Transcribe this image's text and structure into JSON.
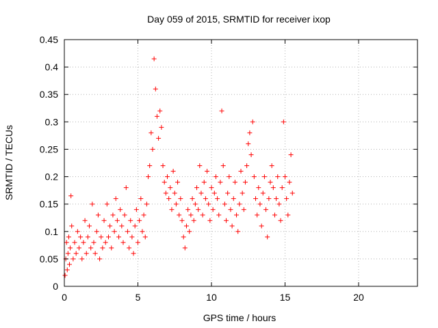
{
  "chart_data": {
    "type": "scatter",
    "title": "Day 059 of 2015, SRMTID for receiver ixop",
    "xlabel": "GPS time / hours",
    "ylabel": "SRMTID / TECUs",
    "xlim": [
      0,
      24
    ],
    "ylim": [
      0,
      0.45
    ],
    "x_ticks": [
      0,
      5,
      10,
      15,
      20
    ],
    "x_tick_labels": [
      "0",
      "5",
      "10",
      "15",
      "20"
    ],
    "y_ticks": [
      0,
      0.05,
      0.1,
      0.15,
      0.2,
      0.25,
      0.3,
      0.35,
      0.4,
      0.45
    ],
    "y_tick_labels": [
      "0",
      "0.05",
      "0.1",
      "0.15",
      "0.2",
      "0.25",
      "0.3",
      "0.35",
      "0.4",
      "0.45"
    ],
    "grid": true,
    "marker": "+",
    "marker_color": "#ff0000",
    "data_extent_hours": [
      0,
      15.5
    ],
    "series": [
      {
        "name": "SRMTID",
        "points": [
          [
            0.05,
            0.02
          ],
          [
            0.1,
            0.05
          ],
          [
            0.15,
            0.08
          ],
          [
            0.2,
            0.03
          ],
          [
            0.25,
            0.06
          ],
          [
            0.3,
            0.09
          ],
          [
            0.35,
            0.04
          ],
          [
            0.4,
            0.07
          ],
          [
            0.45,
            0.165
          ],
          [
            0.5,
            0.11
          ],
          [
            0.6,
            0.05
          ],
          [
            0.7,
            0.08
          ],
          [
            0.8,
            0.06
          ],
          [
            0.9,
            0.1
          ],
          [
            1.0,
            0.07
          ],
          [
            1.1,
            0.09
          ],
          [
            1.2,
            0.05
          ],
          [
            1.3,
            0.08
          ],
          [
            1.4,
            0.12
          ],
          [
            1.5,
            0.06
          ],
          [
            1.6,
            0.09
          ],
          [
            1.7,
            0.11
          ],
          [
            1.8,
            0.07
          ],
          [
            1.9,
            0.15
          ],
          [
            2.0,
            0.08
          ],
          [
            2.1,
            0.06
          ],
          [
            2.2,
            0.1
          ],
          [
            2.3,
            0.13
          ],
          [
            2.4,
            0.05
          ],
          [
            2.5,
            0.09
          ],
          [
            2.6,
            0.07
          ],
          [
            2.7,
            0.12
          ],
          [
            2.8,
            0.08
          ],
          [
            2.9,
            0.15
          ],
          [
            3.0,
            0.09
          ],
          [
            3.1,
            0.11
          ],
          [
            3.2,
            0.07
          ],
          [
            3.3,
            0.13
          ],
          [
            3.4,
            0.1
          ],
          [
            3.5,
            0.16
          ],
          [
            3.6,
            0.12
          ],
          [
            3.7,
            0.09
          ],
          [
            3.8,
            0.14
          ],
          [
            3.9,
            0.11
          ],
          [
            4.0,
            0.08
          ],
          [
            4.1,
            0.13
          ],
          [
            4.2,
            0.18
          ],
          [
            4.3,
            0.1
          ],
          [
            4.4,
            0.07
          ],
          [
            4.5,
            0.12
          ],
          [
            4.6,
            0.09
          ],
          [
            4.7,
            0.06
          ],
          [
            4.8,
            0.11
          ],
          [
            4.9,
            0.14
          ],
          [
            5.0,
            0.08
          ],
          [
            5.1,
            0.12
          ],
          [
            5.2,
            0.16
          ],
          [
            5.3,
            0.1
          ],
          [
            5.4,
            0.13
          ],
          [
            5.5,
            0.09
          ],
          [
            5.6,
            0.15
          ],
          [
            5.7,
            0.2
          ],
          [
            5.8,
            0.22
          ],
          [
            5.9,
            0.28
          ],
          [
            6.0,
            0.25
          ],
          [
            6.1,
            0.415
          ],
          [
            6.2,
            0.36
          ],
          [
            6.3,
            0.31
          ],
          [
            6.4,
            0.27
          ],
          [
            6.5,
            0.32
          ],
          [
            6.6,
            0.29
          ],
          [
            6.7,
            0.22
          ],
          [
            6.8,
            0.19
          ],
          [
            6.9,
            0.17
          ],
          [
            7.0,
            0.2
          ],
          [
            7.1,
            0.16
          ],
          [
            7.2,
            0.18
          ],
          [
            7.3,
            0.14
          ],
          [
            7.4,
            0.21
          ],
          [
            7.5,
            0.17
          ],
          [
            7.6,
            0.15
          ],
          [
            7.7,
            0.19
          ],
          [
            7.8,
            0.13
          ],
          [
            7.9,
            0.16
          ],
          [
            8.0,
            0.12
          ],
          [
            8.1,
            0.09
          ],
          [
            8.2,
            0.07
          ],
          [
            8.3,
            0.11
          ],
          [
            8.4,
            0.14
          ],
          [
            8.5,
            0.1
          ],
          [
            8.6,
            0.13
          ],
          [
            8.7,
            0.16
          ],
          [
            8.8,
            0.12
          ],
          [
            8.9,
            0.15
          ],
          [
            9.0,
            0.18
          ],
          [
            9.1,
            0.14
          ],
          [
            9.2,
            0.22
          ],
          [
            9.3,
            0.17
          ],
          [
            9.4,
            0.13
          ],
          [
            9.5,
            0.19
          ],
          [
            9.6,
            0.16
          ],
          [
            9.7,
            0.21
          ],
          [
            9.8,
            0.15
          ],
          [
            9.9,
            0.12
          ],
          [
            10.0,
            0.18
          ],
          [
            10.1,
            0.14
          ],
          [
            10.2,
            0.17
          ],
          [
            10.3,
            0.2
          ],
          [
            10.4,
            0.16
          ],
          [
            10.5,
            0.13
          ],
          [
            10.6,
            0.19
          ],
          [
            10.7,
            0.32
          ],
          [
            10.8,
            0.22
          ],
          [
            10.9,
            0.15
          ],
          [
            11.0,
            0.12
          ],
          [
            11.1,
            0.17
          ],
          [
            11.2,
            0.2
          ],
          [
            11.3,
            0.14
          ],
          [
            11.4,
            0.11
          ],
          [
            11.5,
            0.16
          ],
          [
            11.6,
            0.19
          ],
          [
            11.7,
            0.13
          ],
          [
            11.8,
            0.1
          ],
          [
            11.9,
            0.15
          ],
          [
            12.0,
            0.21
          ],
          [
            12.1,
            0.17
          ],
          [
            12.2,
            0.14
          ],
          [
            12.3,
            0.19
          ],
          [
            12.4,
            0.22
          ],
          [
            12.5,
            0.26
          ],
          [
            12.6,
            0.28
          ],
          [
            12.7,
            0.24
          ],
          [
            12.8,
            0.3
          ],
          [
            12.9,
            0.2
          ],
          [
            13.0,
            0.16
          ],
          [
            13.1,
            0.13
          ],
          [
            13.2,
            0.18
          ],
          [
            13.3,
            0.15
          ],
          [
            13.4,
            0.11
          ],
          [
            13.5,
            0.17
          ],
          [
            13.6,
            0.2
          ],
          [
            13.7,
            0.14
          ],
          [
            13.8,
            0.09
          ],
          [
            13.9,
            0.16
          ],
          [
            14.0,
            0.19
          ],
          [
            14.1,
            0.22
          ],
          [
            14.2,
            0.18
          ],
          [
            14.3,
            0.13
          ],
          [
            14.4,
            0.16
          ],
          [
            14.5,
            0.2
          ],
          [
            14.6,
            0.15
          ],
          [
            14.7,
            0.12
          ],
          [
            14.8,
            0.18
          ],
          [
            14.9,
            0.3
          ],
          [
            15.0,
            0.2
          ],
          [
            15.1,
            0.16
          ],
          [
            15.2,
            0.13
          ],
          [
            15.3,
            0.19
          ],
          [
            15.4,
            0.24
          ],
          [
            15.5,
            0.17
          ]
        ]
      }
    ]
  }
}
